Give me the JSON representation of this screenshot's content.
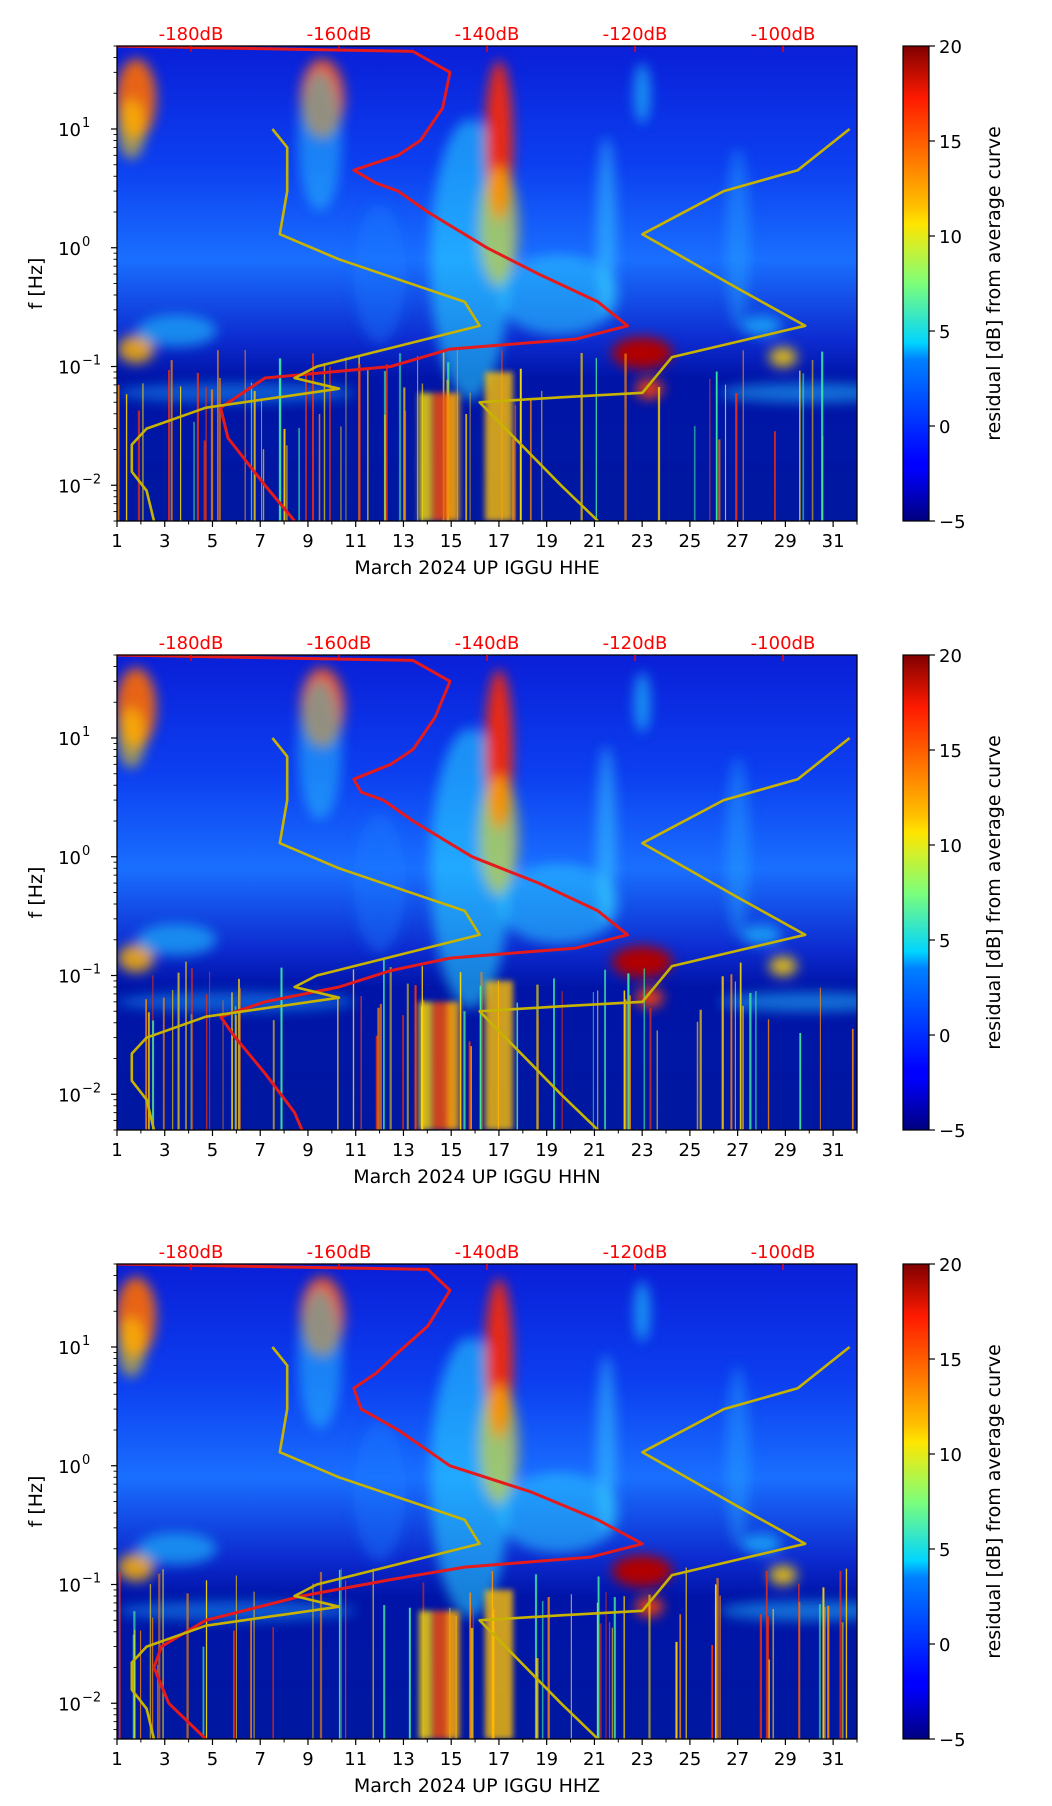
{
  "chart_data": [
    {
      "type": "heatmap",
      "xlabel": "March 2024 UP IGGU  HHE",
      "ylabel": "f [Hz]",
      "x_ticks": [
        "1",
        "3",
        "5",
        "7",
        "9",
        "11",
        "13",
        "15",
        "17",
        "19",
        "21",
        "23",
        "25",
        "27",
        "29",
        "31"
      ],
      "xlim": [
        1,
        32
      ],
      "ylim": [
        0.005,
        50
      ],
      "y_ticks": [
        {
          "value": 0.01,
          "base": "10",
          "exp": "−2"
        },
        {
          "value": 0.1,
          "base": "10",
          "exp": "−1"
        },
        {
          "value": 1,
          "base": "10",
          "exp": "0"
        },
        {
          "value": 10,
          "base": "10",
          "exp": "1"
        }
      ],
      "top_axis_labels": [
        "-180dB",
        "-160dB",
        "-140dB",
        "-120dB",
        "-100dB"
      ],
      "top_axis_range_db": [
        -190,
        -90
      ],
      "colorbar": {
        "label": "residual [dB] from average curve",
        "range": [
          -5,
          20
        ],
        "ticks": [
          "−5",
          "0",
          "5",
          "10",
          "15",
          "20"
        ],
        "colormap": "jet"
      },
      "series": [
        {
          "name": "PSD average (red)",
          "color": "#e41a1c",
          "points": [
            [
              -190,
              50
            ],
            [
              -150,
              45
            ],
            [
              -145,
              30
            ],
            [
              -146,
              15
            ],
            [
              -149,
              8
            ],
            [
              -152,
              6
            ],
            [
              -158,
              4.5
            ],
            [
              -155,
              3.5
            ],
            [
              -152,
              3
            ],
            [
              -148,
              2
            ],
            [
              -140,
              1
            ],
            [
              -133,
              0.6
            ],
            [
              -125,
              0.35
            ],
            [
              -121,
              0.22
            ],
            [
              -128,
              0.17
            ],
            [
              -145,
              0.14
            ],
            [
              -153,
              0.1
            ],
            [
              -170,
              0.08
            ],
            [
              -176,
              0.045
            ],
            [
              -175,
              0.025
            ],
            [
              -170,
              0.01
            ],
            [
              -166,
              0.005
            ]
          ]
        },
        {
          "name": "NLNM (yellow)",
          "color": "#c8b400",
          "points": [
            [
              -169,
              10
            ],
            [
              -167,
              7
            ],
            [
              -167,
              3
            ],
            [
              -168,
              1.3
            ],
            [
              -160,
              0.8
            ],
            [
              -143,
              0.35
            ],
            [
              -141,
              0.22
            ],
            [
              -163,
              0.1
            ],
            [
              -166,
              0.08
            ],
            [
              -160,
              0.065
            ],
            [
              -178,
              0.045
            ],
            [
              -186,
              0.03
            ],
            [
              -188,
              0.022
            ],
            [
              -188,
              0.013
            ],
            [
              -186,
              0.009
            ],
            [
              -185,
              0.005
            ]
          ]
        },
        {
          "name": "NHNM (yellow)",
          "color": "#c8b400",
          "points": [
            [
              -91,
              10
            ],
            [
              -98,
              4.5
            ],
            [
              -108,
              3
            ],
            [
              -119,
              1.3
            ],
            [
              -106,
              0.45
            ],
            [
              -97,
              0.22
            ],
            [
              -115,
              0.12
            ],
            [
              -119,
              0.06
            ],
            [
              -130,
              0.055
            ],
            [
              -141,
              0.05
            ],
            [
              -130,
              0.01
            ],
            [
              -125,
              0.005
            ]
          ]
        }
      ]
    },
    {
      "type": "heatmap",
      "xlabel": "March 2024 UP IGGU  HHN",
      "ylabel": "f [Hz]",
      "x_ticks": [
        "1",
        "3",
        "5",
        "7",
        "9",
        "11",
        "13",
        "15",
        "17",
        "19",
        "21",
        "23",
        "25",
        "27",
        "29",
        "31"
      ],
      "xlim": [
        1,
        32
      ],
      "ylim": [
        0.005,
        50
      ],
      "y_ticks": [
        {
          "value": 0.01,
          "base": "10",
          "exp": "−2"
        },
        {
          "value": 0.1,
          "base": "10",
          "exp": "−1"
        },
        {
          "value": 1,
          "base": "10",
          "exp": "0"
        },
        {
          "value": 10,
          "base": "10",
          "exp": "1"
        }
      ],
      "top_axis_labels": [
        "-180dB",
        "-160dB",
        "-140dB",
        "-120dB",
        "-100dB"
      ],
      "top_axis_range_db": [
        -190,
        -90
      ],
      "colorbar": {
        "label": "residual [dB] from average curve",
        "range": [
          -5,
          20
        ],
        "ticks": [
          "−5",
          "0",
          "5",
          "10",
          "15",
          "20"
        ],
        "colormap": "jet"
      },
      "series": [
        {
          "name": "PSD average (red)",
          "color": "#e41a1c",
          "points": [
            [
              -190,
              50
            ],
            [
              -150,
              45
            ],
            [
              -145,
              30
            ],
            [
              -147,
              15
            ],
            [
              -150,
              8
            ],
            [
              -153,
              6
            ],
            [
              -158,
              4.5
            ],
            [
              -157,
              3.5
            ],
            [
              -154,
              3
            ],
            [
              -150,
              2
            ],
            [
              -142,
              1
            ],
            [
              -133,
              0.6
            ],
            [
              -125,
              0.35
            ],
            [
              -121,
              0.22
            ],
            [
              -128,
              0.17
            ],
            [
              -145,
              0.14
            ],
            [
              -153,
              0.11
            ],
            [
              -160,
              0.08
            ],
            [
              -170,
              0.06
            ],
            [
              -176,
              0.045
            ],
            [
              -174,
              0.03
            ],
            [
              -170,
              0.015
            ],
            [
              -166,
              0.007
            ],
            [
              -165,
              0.005
            ]
          ]
        },
        {
          "name": "NLNM (yellow)",
          "color": "#c8b400",
          "points": [
            [
              -169,
              10
            ],
            [
              -167,
              7
            ],
            [
              -167,
              3
            ],
            [
              -168,
              1.3
            ],
            [
              -160,
              0.8
            ],
            [
              -143,
              0.35
            ],
            [
              -141,
              0.22
            ],
            [
              -163,
              0.1
            ],
            [
              -166,
              0.08
            ],
            [
              -160,
              0.065
            ],
            [
              -178,
              0.045
            ],
            [
              -186,
              0.03
            ],
            [
              -188,
              0.022
            ],
            [
              -188,
              0.013
            ],
            [
              -186,
              0.009
            ],
            [
              -185,
              0.005
            ]
          ]
        },
        {
          "name": "NHNM (yellow)",
          "color": "#c8b400",
          "points": [
            [
              -91,
              10
            ],
            [
              -98,
              4.5
            ],
            [
              -108,
              3
            ],
            [
              -119,
              1.3
            ],
            [
              -106,
              0.45
            ],
            [
              -97,
              0.22
            ],
            [
              -115,
              0.12
            ],
            [
              -119,
              0.06
            ],
            [
              -130,
              0.055
            ],
            [
              -141,
              0.05
            ],
            [
              -130,
              0.01
            ],
            [
              -125,
              0.005
            ]
          ]
        }
      ]
    },
    {
      "type": "heatmap",
      "xlabel": "March 2024 UP IGGU  HHZ",
      "ylabel": "f [Hz]",
      "x_ticks": [
        "1",
        "3",
        "5",
        "7",
        "9",
        "11",
        "13",
        "15",
        "17",
        "19",
        "21",
        "23",
        "25",
        "27",
        "29",
        "31"
      ],
      "xlim": [
        1,
        32
      ],
      "ylim": [
        0.005,
        50
      ],
      "y_ticks": [
        {
          "value": 0.01,
          "base": "10",
          "exp": "−2"
        },
        {
          "value": 0.1,
          "base": "10",
          "exp": "−1"
        },
        {
          "value": 1,
          "base": "10",
          "exp": "0"
        },
        {
          "value": 10,
          "base": "10",
          "exp": "1"
        }
      ],
      "top_axis_labels": [
        "-180dB",
        "-160dB",
        "-140dB",
        "-120dB",
        "-100dB"
      ],
      "top_axis_range_db": [
        -190,
        -90
      ],
      "colorbar": {
        "label": "residual [dB] from average curve",
        "range": [
          -5,
          20
        ],
        "ticks": [
          "−5",
          "0",
          "5",
          "10",
          "15",
          "20"
        ],
        "colormap": "jet"
      },
      "series": [
        {
          "name": "PSD average (red)",
          "color": "#e41a1c",
          "points": [
            [
              -190,
              50
            ],
            [
              -148,
              45
            ],
            [
              -145,
              30
            ],
            [
              -148,
              15
            ],
            [
              -152,
              9
            ],
            [
              -155,
              6
            ],
            [
              -158,
              4.5
            ],
            [
              -157,
              3
            ],
            [
              -152,
              2
            ],
            [
              -145,
              1
            ],
            [
              -134,
              0.6
            ],
            [
              -125,
              0.35
            ],
            [
              -119,
              0.22
            ],
            [
              -126,
              0.17
            ],
            [
              -143,
              0.14
            ],
            [
              -153,
              0.11
            ],
            [
              -165,
              0.08
            ],
            [
              -178,
              0.05
            ],
            [
              -184,
              0.03
            ],
            [
              -185,
              0.02
            ],
            [
              -183,
              0.01
            ],
            [
              -178,
              0.005
            ]
          ]
        },
        {
          "name": "NLNM (yellow)",
          "color": "#c8b400",
          "points": [
            [
              -169,
              10
            ],
            [
              -167,
              7
            ],
            [
              -167,
              3
            ],
            [
              -168,
              1.3
            ],
            [
              -160,
              0.8
            ],
            [
              -143,
              0.35
            ],
            [
              -141,
              0.22
            ],
            [
              -163,
              0.1
            ],
            [
              -166,
              0.08
            ],
            [
              -160,
              0.065
            ],
            [
              -178,
              0.045
            ],
            [
              -186,
              0.03
            ],
            [
              -188,
              0.022
            ],
            [
              -188,
              0.013
            ],
            [
              -186,
              0.009
            ],
            [
              -185,
              0.005
            ]
          ]
        },
        {
          "name": "NHNM (yellow)",
          "color": "#c8b400",
          "points": [
            [
              -91,
              10
            ],
            [
              -98,
              4.5
            ],
            [
              -108,
              3
            ],
            [
              -119,
              1.3
            ],
            [
              -106,
              0.45
            ],
            [
              -97,
              0.22
            ],
            [
              -115,
              0.12
            ],
            [
              -119,
              0.06
            ],
            [
              -130,
              0.055
            ],
            [
              -141,
              0.05
            ],
            [
              -130,
              0.01
            ],
            [
              -125,
              0.005
            ]
          ]
        }
      ]
    }
  ]
}
